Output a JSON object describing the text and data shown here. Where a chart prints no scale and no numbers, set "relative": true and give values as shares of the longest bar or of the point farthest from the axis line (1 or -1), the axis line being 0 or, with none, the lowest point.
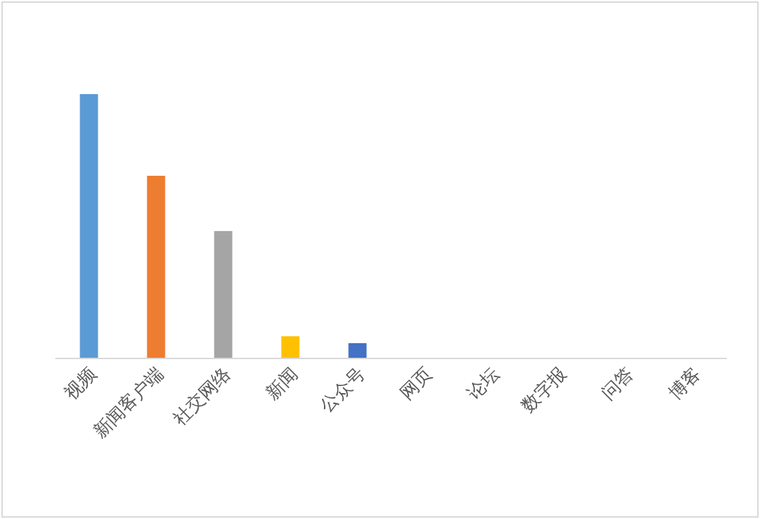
{
  "chart_data": {
    "type": "bar",
    "relative": true,
    "categories": [
      "视频",
      "新闻客户端",
      "社交网络",
      "新闻",
      "公众号",
      "网页",
      "论坛",
      "数字报",
      "问答",
      "博客"
    ],
    "values": [
      1,
      0.691,
      0.482,
      0.084,
      0.058,
      0,
      0,
      0,
      0,
      0
    ],
    "colors": [
      "#5b9bd5",
      "#ed7d31",
      "#a5a5a5",
      "#ffc000",
      "#4472c4",
      "#70ad47",
      "#255e91",
      "#9e480e",
      "#636363",
      "#997300"
    ]
  }
}
